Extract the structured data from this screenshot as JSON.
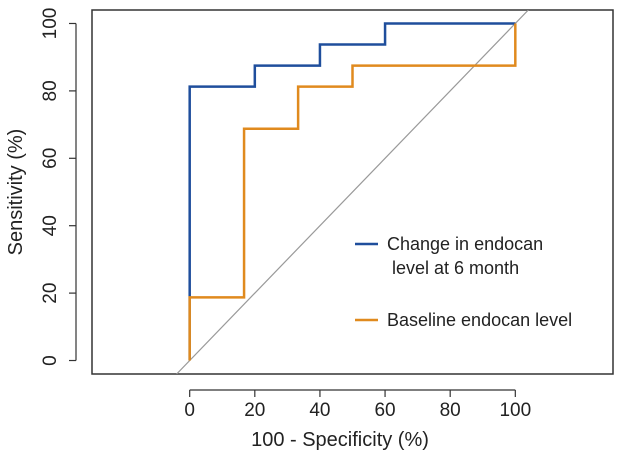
{
  "chart_data": {
    "type": "line",
    "title": "",
    "xlabel": "100 - Specificity (%)",
    "ylabel": "Sensitivity (%)",
    "xlim": [
      -30,
      130
    ],
    "ylim": [
      -4,
      104
    ],
    "x_ticks": [
      0,
      20,
      40,
      60,
      80,
      100
    ],
    "y_ticks": [
      0,
      20,
      40,
      60,
      80,
      100
    ],
    "grid": false,
    "legend_position": "bottom-right",
    "reference_line": {
      "name": "diagonal reference",
      "color": "#999999",
      "x": [
        -4,
        104
      ],
      "y": [
        -4,
        104
      ]
    },
    "series": [
      {
        "name": "Change in endocan level at 6 month",
        "legend_lines": [
          "Change in endocan",
          " level at 6 month"
        ],
        "color": "#1f4e9c",
        "x": [
          0,
          0,
          20,
          20,
          40,
          40,
          60,
          60,
          100
        ],
        "y": [
          0,
          81.25,
          81.25,
          87.5,
          87.5,
          93.75,
          93.75,
          100,
          100
        ]
      },
      {
        "name": "Baseline endocan level",
        "legend_lines": [
          "Baseline endocan level"
        ],
        "color": "#e08a1e",
        "x": [
          0,
          0,
          16.7,
          16.7,
          33.3,
          33.3,
          50,
          50,
          100,
          100
        ],
        "y": [
          0,
          18.75,
          18.75,
          68.75,
          68.75,
          81.25,
          81.25,
          87.5,
          87.5,
          100
        ]
      }
    ]
  }
}
